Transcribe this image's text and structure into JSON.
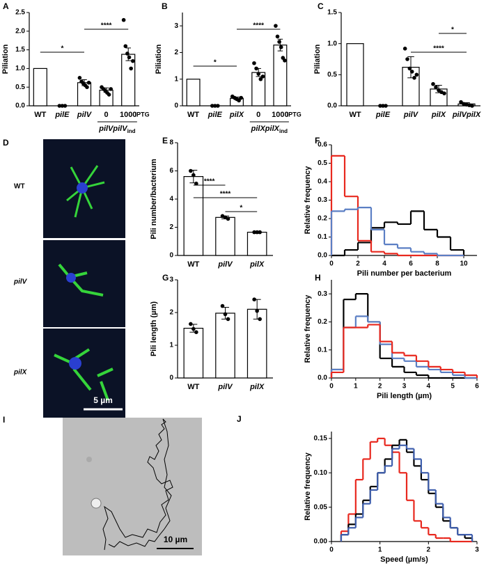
{
  "chart_data": [
    {
      "type": "bar",
      "panel": "A",
      "y_label": "Piliation",
      "color": "#ffffff",
      "point_color": "#000000",
      "categories": [
        "WT",
        "pilE",
        "pilV",
        "0",
        "1000"
      ],
      "values": [
        1,
        0,
        0.62,
        0.42,
        1.38
      ],
      "errors": [
        null,
        null,
        0.08,
        0.06,
        0.17
      ],
      "points": [
        [],
        [
          0,
          0,
          0
        ],
        [
          0.75,
          0.65,
          0.6,
          0.55,
          0.5,
          0.62
        ],
        [
          0.5,
          0.45,
          0.4,
          0.35,
          0.3,
          0.45
        ],
        [
          2.3,
          1.6,
          1.4,
          1.3,
          1.0,
          1.2
        ]
      ],
      "group": {
        "label": "pilVpilV",
        "subscript": "ind",
        "members": [
          "0",
          "1000"
        ]
      },
      "note": "IPTG",
      "annotations": [
        {
          "text": "*",
          "between": [
            "WT",
            "pilV"
          ]
        },
        {
          "text": "****",
          "between": [
            "pilV",
            "1000"
          ]
        }
      ],
      "ylim": [
        0,
        2.5
      ],
      "yticks": [
        {
          "value": 0,
          "label": "0.0"
        },
        0.5,
        {
          "value": 1,
          "label": "1.0"
        },
        1.5,
        {
          "value": 2,
          "label": "2.0"
        },
        2.5
      ]
    },
    {
      "type": "bar",
      "panel": "B",
      "y_label": "Piliation",
      "color": "#ffffff",
      "point_color": "#000000",
      "categories": [
        "WT",
        "pilE",
        "pilX",
        "0",
        "1000"
      ],
      "values": [
        1,
        0,
        0.28,
        1.25,
        2.28
      ],
      "errors": [
        null,
        null,
        0.05,
        0.15,
        0.22
      ],
      "points": [
        [],
        [
          0,
          0,
          0
        ],
        [
          0.35,
          0.3,
          0.25,
          0.2,
          0.3
        ],
        [
          1.6,
          1.4,
          1.2,
          1.0,
          1.1
        ],
        [
          3.0,
          2.6,
          2.4,
          2.2,
          1.8,
          1.7
        ]
      ],
      "group": {
        "label": "pilXpilX",
        "subscript": "ind",
        "members": [
          "0",
          "1000"
        ]
      },
      "note": "IPTG",
      "annotations": [
        {
          "text": "*",
          "between": [
            "WT",
            "pilX"
          ]
        },
        {
          "text": "****",
          "between": [
            "pilX",
            "1000"
          ]
        }
      ],
      "ylim": [
        0,
        3.5
      ],
      "yticks": [
        0,
        1,
        2,
        3
      ]
    },
    {
      "type": "bar",
      "panel": "C",
      "y_label": "Piliation",
      "color": "#ffffff",
      "point_color": "#000000",
      "categories": [
        "WT",
        "pilE",
        "pilV",
        "pilX",
        "pilVpilX"
      ],
      "values": [
        1,
        0,
        0.62,
        0.27,
        0.03
      ],
      "errors": [
        null,
        null,
        0.17,
        0.06,
        0.02
      ],
      "points": [
        [],
        [
          0,
          0,
          0
        ],
        [
          0.92,
          0.75,
          0.6,
          0.55,
          0.45,
          0.5
        ],
        [
          0.35,
          0.3,
          0.25,
          0.22,
          0.2
        ],
        [
          0.06,
          0.03,
          0.02,
          0.01,
          0
        ]
      ],
      "annotations": [
        {
          "text": "****",
          "between": [
            "pilV",
            "pilVpilX"
          ]
        },
        {
          "text": "*",
          "between": [
            "pilX",
            "pilVpilX"
          ]
        }
      ],
      "ylim": [
        0,
        1.5
      ],
      "yticks": [
        {
          "value": 0,
          "label": "0.0"
        },
        0.5,
        {
          "value": 1,
          "label": "1.0"
        },
        1.5
      ]
    },
    {
      "type": "bar",
      "panel": "E",
      "y_label": "Pili number/bacterium",
      "color": "#ffffff",
      "point_color": "#000000",
      "categories": [
        "WT",
        "pilV",
        "pilX"
      ],
      "values": [
        5.6,
        2.7,
        1.65
      ],
      "errors": [
        0.45,
        0.1,
        0.02
      ],
      "points": [
        [
          6.0,
          5.7,
          5.1
        ],
        [
          2.8,
          2.7,
          2.6
        ],
        [
          1.65,
          1.65,
          1.65
        ]
      ],
      "annotations": [
        {
          "text": "****",
          "between": [
            "WT",
            "pilV"
          ]
        },
        {
          "text": "****",
          "between": [
            "WT",
            "pilX"
          ]
        },
        {
          "text": "*",
          "between": [
            "pilV",
            "pilX"
          ]
        }
      ],
      "ylim": [
        0,
        8
      ],
      "yticks": [
        0,
        2,
        4,
        6,
        8
      ]
    },
    {
      "type": "histogram",
      "panel": "F",
      "x_label": "Pili number per bacterium",
      "y_label": "Relative frequency",
      "bins": [
        0,
        1,
        2,
        3,
        4,
        5,
        6,
        7,
        8,
        9,
        10
      ],
      "series": [
        {
          "color": "#000000",
          "values": [
            0,
            0.03,
            0.07,
            0.15,
            0.18,
            0.17,
            0.24,
            0.14,
            0.1,
            0.03
          ]
        },
        {
          "color": "#e8281e",
          "values": [
            0.54,
            0.32,
            0.08,
            0.02,
            0.01,
            0,
            0,
            0,
            0,
            0
          ]
        },
        {
          "color": "#5b7fc4",
          "values": [
            0.24,
            0.25,
            0.26,
            0.14,
            0.06,
            0.04,
            0.02,
            0.01,
            0,
            0
          ]
        }
      ],
      "xlim": [
        0,
        11
      ],
      "xticks": [
        0,
        2,
        4,
        6,
        8,
        10
      ],
      "ylim": [
        0,
        0.6
      ],
      "yticks": [
        {
          "value": 0,
          "label": "0.0"
        },
        0.1,
        0.2,
        0.3,
        0.4,
        0.5,
        0.6
      ]
    },
    {
      "type": "bar",
      "panel": "G",
      "y_label": "Pili length (µm)",
      "color": "#ffffff",
      "point_color": "#000000",
      "categories": [
        "WT",
        "pilV",
        "pilX"
      ],
      "values": [
        1.52,
        1.98,
        2.1
      ],
      "errors": [
        0.12,
        0.18,
        0.3
      ],
      "points": [
        [
          1.65,
          1.5,
          1.4
        ],
        [
          2.2,
          1.95,
          1.8
        ],
        [
          2.4,
          2.05,
          1.8
        ]
      ],
      "ylim": [
        0,
        3
      ],
      "yticks": [
        0,
        1,
        2,
        3
      ]
    },
    {
      "type": "histogram",
      "panel": "H",
      "x_label": "Pili length (µm)",
      "y_label": "Relative frequency",
      "bins": [
        0,
        0.5,
        1,
        1.5,
        2,
        2.5,
        3,
        3.5,
        4,
        4.5,
        5,
        5.5,
        6
      ],
      "series": [
        {
          "color": "#000000",
          "values": [
            0.03,
            0.28,
            0.3,
            0.2,
            0.07,
            0.04,
            0.02,
            0.01,
            0,
            0,
            0,
            0
          ]
        },
        {
          "color": "#5b7fc4",
          "values": [
            0.03,
            0.18,
            0.22,
            0.2,
            0.12,
            0.07,
            0.06,
            0.04,
            0.03,
            0.02,
            0.01,
            0
          ]
        },
        {
          "color": "#e8281e",
          "values": [
            0.02,
            0.18,
            0.18,
            0.19,
            0.13,
            0.09,
            0.08,
            0.06,
            0.04,
            0.03,
            0.02,
            0.01
          ]
        }
      ],
      "xlim": [
        0,
        6
      ],
      "xticks": [
        0,
        1,
        2,
        3,
        4,
        5,
        6
      ],
      "ylim": [
        0,
        0.35
      ],
      "yticks": [
        {
          "value": 0,
          "label": "0.0"
        },
        0.1,
        0.2,
        0.3
      ]
    },
    {
      "type": "histogram",
      "panel": "J",
      "x_label": "Speed (µm/s)",
      "y_label": "Relative frequency",
      "bins": [
        0.2,
        0.35,
        0.5,
        0.65,
        0.8,
        0.95,
        1.1,
        1.25,
        1.4,
        1.55,
        1.7,
        1.85,
        2.0,
        2.15,
        2.3,
        2.45,
        2.6,
        2.75,
        2.9
      ],
      "series": [
        {
          "color": "#e8281e",
          "values": [
            0.015,
            0.04,
            0.09,
            0.12,
            0.145,
            0.15,
            0.14,
            0.13,
            0.1,
            0.06,
            0.03,
            0.02,
            0.01,
            0.005,
            0.005,
            0,
            0,
            0
          ]
        },
        {
          "color": "#000000",
          "values": [
            0.01,
            0.025,
            0.04,
            0.06,
            0.08,
            0.1,
            0.12,
            0.14,
            0.148,
            0.13,
            0.11,
            0.09,
            0.07,
            0.05,
            0.03,
            0.02,
            0.01,
            0.005
          ]
        },
        {
          "color": "#3f5fae",
          "values": [
            0.01,
            0.02,
            0.035,
            0.055,
            0.075,
            0.1,
            0.11,
            0.135,
            0.14,
            0.135,
            0.12,
            0.1,
            0.075,
            0.055,
            0.035,
            0.02,
            0.01,
            0.01
          ]
        }
      ],
      "xlim": [
        0,
        3
      ],
      "xticks": [
        0,
        1,
        2,
        3
      ],
      "ylim": [
        0,
        0.16
      ],
      "yticks": [
        {
          "value": 0,
          "label": "0.00"
        },
        0.05,
        {
          "value": 0.1,
          "label": "0.10"
        },
        0.15
      ]
    }
  ],
  "images": {
    "D": {
      "panel": "D",
      "labels": [
        "WT",
        "pilV",
        "pilX"
      ],
      "scale_bar": "5 µm"
    },
    "I": {
      "panel": "I",
      "scale_bar": "10 µm"
    }
  }
}
